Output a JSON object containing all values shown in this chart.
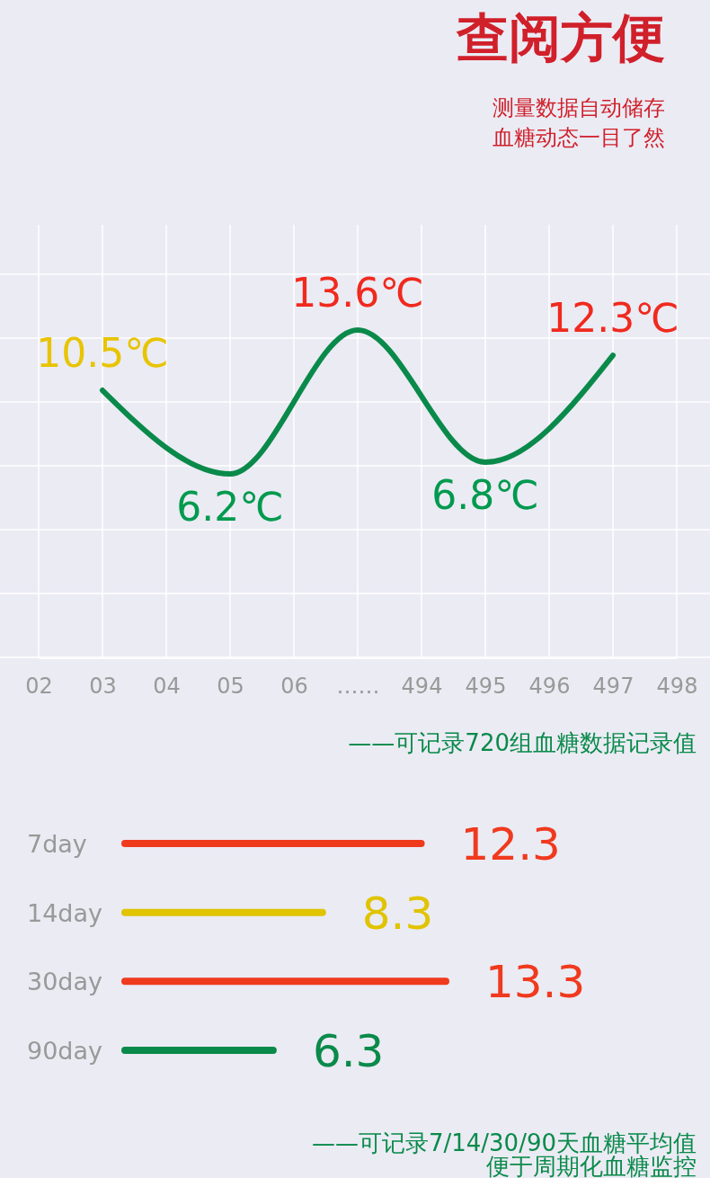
{
  "chart_data": [
    {
      "type": "line",
      "title": "查阅方便",
      "subtitle": "测量数据自动储存血糖动态一目了然",
      "categories": [
        "02",
        "03",
        "04",
        "05",
        "06",
        "……",
        "494",
        "495",
        "496",
        "497",
        "498"
      ],
      "series": [
        {
          "color": "#0a8a4a",
          "values": [
            null,
            10.5,
            null,
            6.2,
            null,
            13.6,
            null,
            6.8,
            null,
            12.3,
            null
          ],
          "colors": [
            null,
            "#e8c400",
            null,
            "#009a4e",
            null,
            "#f02a1e",
            null,
            "#009a4e",
            null,
            "#f02a1e",
            null
          ],
          "value_labels": [
            null,
            "10.5℃",
            null,
            "6.2℃",
            null,
            "13.6℃",
            null,
            "6.8℃",
            null,
            "12.3℃",
            null
          ]
        }
      ],
      "grid": true,
      "marker": "none",
      "annotations": [
        "——可记录720组血糖数据记录值"
      ]
    },
    {
      "type": "bar",
      "orientation": "horizontal",
      "categories": [
        "7day",
        "14day",
        "30day",
        "90day"
      ],
      "values": [
        12.3,
        8.3,
        13.3,
        6.3
      ],
      "colors": [
        "#f03a1e",
        "#e0c400",
        "#f03a1e",
        "#0a8a4a"
      ],
      "data_labels": true,
      "annotations": [
        "——可记录7/14/30/90天血糖平均值",
        "便于周期化血糖监控"
      ]
    }
  ]
}
